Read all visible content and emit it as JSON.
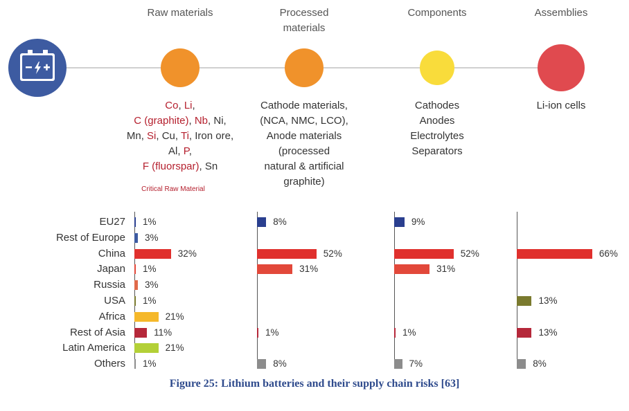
{
  "stages": [
    {
      "name": "Raw materials",
      "name_lines": [
        "Raw materials"
      ],
      "color": "#f0922b",
      "desc_lines": [
        [
          {
            "t": "Co",
            "c": true
          },
          {
            "t": ", ",
            "c": false
          },
          {
            "t": "Li",
            "c": true
          },
          {
            "t": ",",
            "c": false
          }
        ],
        [
          {
            "t": "C (graphite)",
            "c": true
          },
          {
            "t": ", ",
            "c": false
          },
          {
            "t": "Nb",
            "c": true
          },
          {
            "t": ", Ni,",
            "c": false
          }
        ],
        [
          {
            "t": "Mn, ",
            "c": false
          },
          {
            "t": "Si",
            "c": true
          },
          {
            "t": ", Cu, ",
            "c": false
          },
          {
            "t": "Ti",
            "c": true
          },
          {
            "t": ", Iron ore,",
            "c": false
          }
        ],
        [
          {
            "t": "Al, ",
            "c": false
          },
          {
            "t": "P",
            "c": true
          },
          {
            "t": ",",
            "c": false
          }
        ],
        [
          {
            "t": "F (fluorspar)",
            "c": true
          },
          {
            "t": ", Sn",
            "c": false
          }
        ]
      ]
    },
    {
      "name": "Processed materials",
      "name_lines": [
        "Processed",
        "materials"
      ],
      "color": "#f0922b",
      "desc_lines": [
        [
          {
            "t": "Cathode materials,",
            "c": false
          }
        ],
        [
          {
            "t": "(NCA, NMC, LCO),",
            "c": false
          }
        ],
        [
          {
            "t": "Anode materials",
            "c": false
          }
        ],
        [
          {
            "t": "(processed",
            "c": false
          }
        ],
        [
          {
            "t": "natural & artificial",
            "c": false
          }
        ],
        [
          {
            "t": "graphite)",
            "c": false
          }
        ]
      ]
    },
    {
      "name": "Components",
      "name_lines": [
        "Components"
      ],
      "color": "#f9dc3b",
      "desc_lines": [
        [
          {
            "t": "Cathodes",
            "c": false
          }
        ],
        [
          {
            "t": "Anodes",
            "c": false
          }
        ],
        [
          {
            "t": "Electrolytes",
            "c": false
          }
        ],
        [
          {
            "t": "Separators",
            "c": false
          }
        ]
      ]
    },
    {
      "name": "Assemblies",
      "name_lines": [
        "Assemblies"
      ],
      "color": "#e04a4f",
      "desc_lines": [
        [
          {
            "t": "Li-ion cells",
            "c": false
          }
        ]
      ]
    }
  ],
  "critical_note": "Critical Raw Material",
  "battery_icon": {
    "name": "battery-icon",
    "color": "#3d5ba1",
    "symbols": "– ϟ +"
  },
  "caption": "Figure 25: Lithium batteries and their supply chain risks [63]",
  "chart_data": {
    "type": "bar",
    "orientation": "horizontal",
    "categories": [
      "EU27",
      "Rest of Europe",
      "China",
      "Japan",
      "Russia",
      "USA",
      "Africa",
      "Rest of Asia",
      "Latin America",
      "Others"
    ],
    "category_colors": [
      "#2a3f8f",
      "#3d5ba1",
      "#e0302d",
      "#e2483a",
      "#e06a4a",
      "#7a7a2e",
      "#f5b82a",
      "#b5283a",
      "#b3d037",
      "#8c8c8c"
    ],
    "series": [
      {
        "name": "Raw materials",
        "values": [
          1,
          3,
          32,
          1,
          3,
          1,
          21,
          11,
          21,
          1
        ],
        "labels": [
          "1%",
          "3%",
          "32%",
          "1%",
          "3%",
          "1%",
          "21%",
          "11%",
          "21%",
          "1%"
        ]
      },
      {
        "name": "Processed materials",
        "values": [
          8,
          null,
          52,
          31,
          null,
          null,
          null,
          1,
          null,
          8
        ],
        "labels": [
          "8%",
          "",
          "52%",
          "31%",
          "",
          "",
          "",
          "1%",
          "",
          "8%"
        ]
      },
      {
        "name": "Components",
        "values": [
          9,
          null,
          52,
          31,
          null,
          null,
          null,
          1,
          null,
          7
        ],
        "labels": [
          "9%",
          "",
          "52%",
          "31%",
          "",
          "",
          "",
          "1%",
          "",
          "7%"
        ]
      },
      {
        "name": "Assemblies",
        "values": [
          null,
          null,
          66,
          null,
          null,
          13,
          null,
          13,
          null,
          8
        ],
        "labels": [
          "",
          "",
          "66%",
          "",
          "",
          "13%",
          "",
          "13%",
          "",
          "8%"
        ]
      }
    ],
    "value_unit": "%",
    "xlim": [
      0,
      66
    ]
  }
}
